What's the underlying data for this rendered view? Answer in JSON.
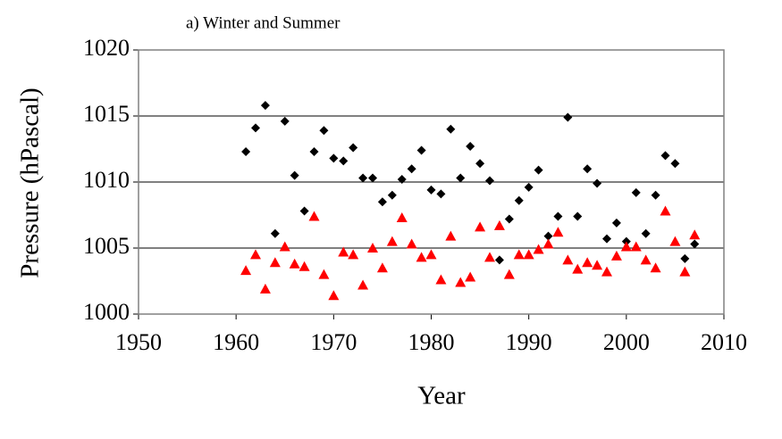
{
  "chart_data": {
    "type": "scatter",
    "title": "a) Winter and Summer",
    "x_label": "Year",
    "y_label": "Pressure (hPascal)",
    "x": [
      1961,
      1962,
      1963,
      1964,
      1965,
      1966,
      1967,
      1968,
      1969,
      1970,
      1971,
      1972,
      1973,
      1974,
      1975,
      1976,
      1977,
      1978,
      1979,
      1980,
      1981,
      1982,
      1983,
      1984,
      1985,
      1986,
      1987,
      1988,
      1989,
      1990,
      1991,
      1992,
      1993,
      1994,
      1995,
      1996,
      1997,
      1998,
      1999,
      2000,
      2001,
      2002,
      2003,
      2004,
      2005,
      2006,
      2007
    ],
    "series": [
      {
        "color": "#000000",
        "marker": "diamond",
        "values": [
          1012.3,
          1014.1,
          1015.8,
          1006.1,
          1014.6,
          1010.5,
          1007.8,
          1012.3,
          1013.9,
          1011.8,
          1011.6,
          1012.6,
          1010.3,
          1010.3,
          1008.5,
          1009.0,
          1010.2,
          1011.0,
          1012.4,
          1009.4,
          1009.1,
          1014.0,
          1010.3,
          1012.7,
          1011.4,
          1010.1,
          1004.1,
          1007.2,
          1008.6,
          1009.6,
          1010.9,
          1005.9,
          1007.4,
          1014.9,
          1007.4,
          1011.0,
          1009.9,
          1005.7,
          1006.9,
          1005.5,
          1009.2,
          1006.1,
          1009.0,
          1012.0,
          1011.4,
          1004.2,
          1005.3
        ]
      },
      {
        "color": "#ff0000",
        "marker": "triangle",
        "values": [
          1003.3,
          1004.5,
          1001.9,
          1003.9,
          1005.1,
          1003.8,
          1003.6,
          1007.4,
          1003.0,
          1001.4,
          1004.7,
          1004.5,
          1002.2,
          1005.0,
          1003.5,
          1005.5,
          1007.3,
          1005.3,
          1004.3,
          1004.5,
          1002.6,
          1005.9,
          1002.4,
          1002.8,
          1006.6,
          1004.3,
          1006.7,
          1003.0,
          1004.5,
          1004.5,
          1004.9,
          1005.3,
          1006.2,
          1004.1,
          1003.4,
          1003.9,
          1003.7,
          1003.2,
          1004.4,
          1005.1,
          1005.1,
          1004.1,
          1003.5,
          1007.8,
          1005.5,
          1003.2,
          1006.0
        ]
      }
    ],
    "xlim": [
      1950,
      2010
    ],
    "xticks": [
      1950,
      1960,
      1970,
      1980,
      1990,
      2000,
      2010
    ],
    "ylim": [
      1000,
      1020
    ],
    "yticks": [
      1000,
      1005,
      1010,
      1015,
      1020
    ],
    "grid": true
  }
}
